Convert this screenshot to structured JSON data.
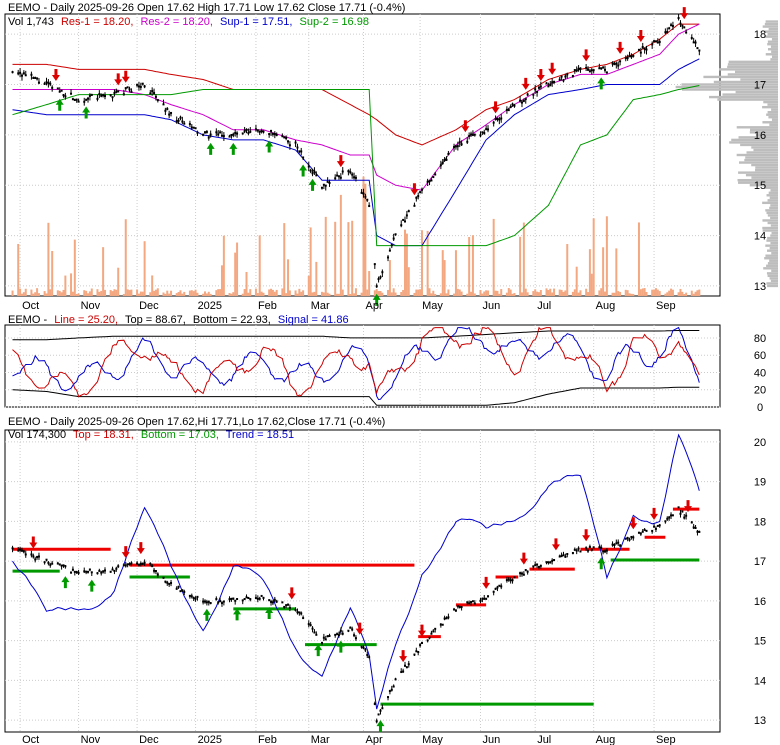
{
  "colors": {
    "price": "#000000",
    "resistance": "#cc0000",
    "res2": "#cc00cc",
    "support": "#0000cc",
    "support2": "#009900",
    "volume": "#f4a882",
    "volume_profile": "#bdbdbd",
    "grid": "#cccccc",
    "up_arrow": "#009900",
    "down_arrow": "#dd0000",
    "osc_line": "#cc0000",
    "osc_signal": "#0000cc",
    "osc_band": "#000000",
    "band_curve": "#0000cc",
    "top_segment": "#ee0000",
    "bottom_segment": "#009900"
  },
  "months": [
    "Oct",
    "Nov",
    "Dec",
    "2025",
    "Feb",
    "Mar",
    "Apr",
    "May",
    "Jun",
    "Jul",
    "Aug",
    "Sep"
  ],
  "panel1": {
    "title_text": "EEMO - Daily 2025-09-26 Open 17.62  High 17.71  Low 17.62  Close 17.71 (-0.4%)",
    "vol_label": "Vol 1,743",
    "res1_label": "Res-1 = 18.20,",
    "res2_label": "Res-2 = 18.20,",
    "sup1_label": "Sup-1 = 17.51,",
    "sup2_label": "Sup-2 = 16.98",
    "y_ticks": [
      "18",
      "17",
      "16",
      "15",
      "14",
      "13"
    ]
  },
  "panel2": {
    "prefix": "EEMO -",
    "line_label": "Line = 25.20,",
    "top_label": "Top = 88.67,",
    "bottom_label": "Bottom = 22.93,",
    "signal_label": "Signal = 41.86",
    "y_ticks": [
      "80",
      "60",
      "40",
      "20",
      "0"
    ]
  },
  "panel3": {
    "title_text": "EEMO - Daily 2025-09-26 Open 17.62,Hi 17.71,Lo 17.62,Close 17.71 (-0.4%)",
    "vol_label": "Vol 174,300",
    "top_label": "Top = 18.31,",
    "bottom_label": "Bottom = 17.03,",
    "trend_label": "Trend = 18.51",
    "y_ticks": [
      "20",
      "19",
      "18",
      "17",
      "16",
      "15",
      "14",
      "13"
    ]
  },
  "chart_data": [
    {
      "type": "line",
      "name": "price-panel",
      "x": [
        "2024-09-27",
        "2024-10-15",
        "2024-11-01",
        "2024-11-20",
        "2024-12-06",
        "2024-12-20",
        "2025-01-06",
        "2025-01-22",
        "2025-02-07",
        "2025-02-24",
        "2025-03-10",
        "2025-03-25",
        "2025-04-04",
        "2025-04-08",
        "2025-04-18",
        "2025-05-02",
        "2025-05-20",
        "2025-06-05",
        "2025-06-20",
        "2025-07-08",
        "2025-07-25",
        "2025-08-08",
        "2025-08-22",
        "2025-09-05",
        "2025-09-15",
        "2025-09-26"
      ],
      "series": [
        {
          "name": "Close",
          "values": [
            17.3,
            17.0,
            16.7,
            16.8,
            17.0,
            16.4,
            16.0,
            16.0,
            16.1,
            15.8,
            15.0,
            15.3,
            14.6,
            13.0,
            14.0,
            14.9,
            15.8,
            16.1,
            16.6,
            17.0,
            17.3,
            17.3,
            17.6,
            17.9,
            18.3,
            17.71
          ]
        },
        {
          "name": "Res-1",
          "values": [
            17.4,
            17.4,
            17.3,
            17.3,
            17.3,
            17.2,
            17.1,
            16.9,
            16.9,
            16.9,
            16.9,
            16.6,
            16.4,
            16.3,
            16.0,
            15.8,
            16.1,
            16.5,
            16.7,
            17.1,
            17.3,
            17.4,
            17.6,
            17.9,
            18.2,
            18.2
          ]
        },
        {
          "name": "Res-2",
          "values": [
            16.9,
            16.9,
            16.9,
            16.9,
            16.8,
            16.6,
            16.4,
            16.1,
            16.1,
            15.9,
            15.8,
            15.6,
            15.6,
            15.2,
            15.0,
            14.9,
            15.8,
            16.2,
            16.6,
            17.0,
            17.2,
            17.2,
            17.4,
            17.6,
            18.0,
            18.2
          ]
        },
        {
          "name": "Sup-1",
          "values": [
            16.5,
            16.4,
            16.4,
            16.4,
            16.4,
            16.3,
            16.0,
            15.9,
            15.9,
            15.7,
            15.1,
            15.1,
            15.1,
            14.0,
            13.8,
            13.8,
            14.9,
            15.9,
            16.4,
            16.8,
            16.9,
            17.0,
            17.0,
            17.0,
            17.3,
            17.51
          ]
        },
        {
          "name": "Sup-2",
          "values": [
            16.4,
            16.6,
            16.8,
            16.8,
            16.8,
            16.8,
            16.9,
            16.9,
            16.9,
            16.9,
            16.9,
            16.9,
            16.9,
            13.8,
            13.8,
            13.8,
            13.8,
            13.8,
            14.0,
            14.6,
            15.8,
            16.0,
            16.7,
            16.8,
            16.9,
            16.98
          ]
        }
      ],
      "ylim": [
        12.8,
        18.4
      ]
    },
    {
      "type": "line",
      "name": "oscillator-panel",
      "x": [
        "2024-09-27",
        "2024-10-15",
        "2024-11-01",
        "2024-11-20",
        "2024-12-06",
        "2024-12-20",
        "2025-01-06",
        "2025-01-22",
        "2025-02-07",
        "2025-02-24",
        "2025-03-10",
        "2025-03-25",
        "2025-04-04",
        "2025-04-08",
        "2025-04-18",
        "2025-05-02",
        "2025-05-20",
        "2025-06-05",
        "2025-06-20",
        "2025-07-08",
        "2025-07-25",
        "2025-08-08",
        "2025-08-22",
        "2025-09-05",
        "2025-09-15",
        "2025-09-26"
      ],
      "series": [
        {
          "name": "Line",
          "values": [
            55,
            30,
            20,
            60,
            75,
            40,
            30,
            45,
            65,
            25,
            40,
            70,
            45,
            5,
            45,
            75,
            85,
            80,
            50,
            85,
            60,
            20,
            80,
            55,
            88,
            25.2
          ]
        },
        {
          "name": "Signal",
          "values": [
            50,
            40,
            30,
            45,
            65,
            50,
            40,
            42,
            55,
            35,
            38,
            60,
            50,
            20,
            35,
            65,
            80,
            80,
            60,
            75,
            65,
            35,
            65,
            60,
            80,
            41.86
          ]
        },
        {
          "name": "Top",
          "values": [
            78,
            78,
            80,
            82,
            82,
            82,
            82,
            82,
            82,
            82,
            82,
            80,
            80,
            80,
            80,
            80,
            82,
            84,
            86,
            88,
            88,
            88,
            88,
            88,
            88.67,
            88.67
          ]
        },
        {
          "name": "Bottom",
          "values": [
            20,
            18,
            12,
            12,
            12,
            12,
            12,
            12,
            12,
            12,
            12,
            12,
            12,
            2,
            2,
            2,
            2,
            2,
            5,
            15,
            22,
            22,
            22,
            22,
            22.93,
            22.93
          ]
        }
      ],
      "ylim": [
        0,
        95
      ]
    },
    {
      "type": "line",
      "name": "trend-panel",
      "x": [
        "2024-09-27",
        "2024-10-15",
        "2024-11-01",
        "2024-11-20",
        "2024-12-06",
        "2024-12-20",
        "2025-01-06",
        "2025-01-22",
        "2025-02-07",
        "2025-02-24",
        "2025-03-10",
        "2025-03-25",
        "2025-04-04",
        "2025-04-08",
        "2025-04-18",
        "2025-05-02",
        "2025-05-20",
        "2025-06-05",
        "2025-06-20",
        "2025-07-08",
        "2025-07-25",
        "2025-08-08",
        "2025-08-22",
        "2025-09-05",
        "2025-09-15",
        "2025-09-26"
      ],
      "series": [
        {
          "name": "Close",
          "values": [
            17.3,
            17.0,
            16.7,
            16.8,
            17.0,
            16.4,
            16.0,
            16.0,
            16.1,
            15.8,
            15.0,
            15.3,
            14.6,
            13.0,
            14.0,
            14.9,
            15.8,
            16.1,
            16.6,
            17.0,
            17.3,
            17.3,
            17.6,
            17.9,
            18.3,
            17.71
          ]
        },
        {
          "name": "Trend",
          "values": [
            17.0,
            15.4,
            16.0,
            16.4,
            18.0,
            16.8,
            15.6,
            16.8,
            16.2,
            15.0,
            14.4,
            15.6,
            14.3,
            13.0,
            15.0,
            17.0,
            17.8,
            17.6,
            18.3,
            19.0,
            18.8,
            16.6,
            18.5,
            18.0,
            19.9,
            18.51
          ]
        }
      ],
      "ylim": [
        12.7,
        20.3
      ]
    }
  ]
}
